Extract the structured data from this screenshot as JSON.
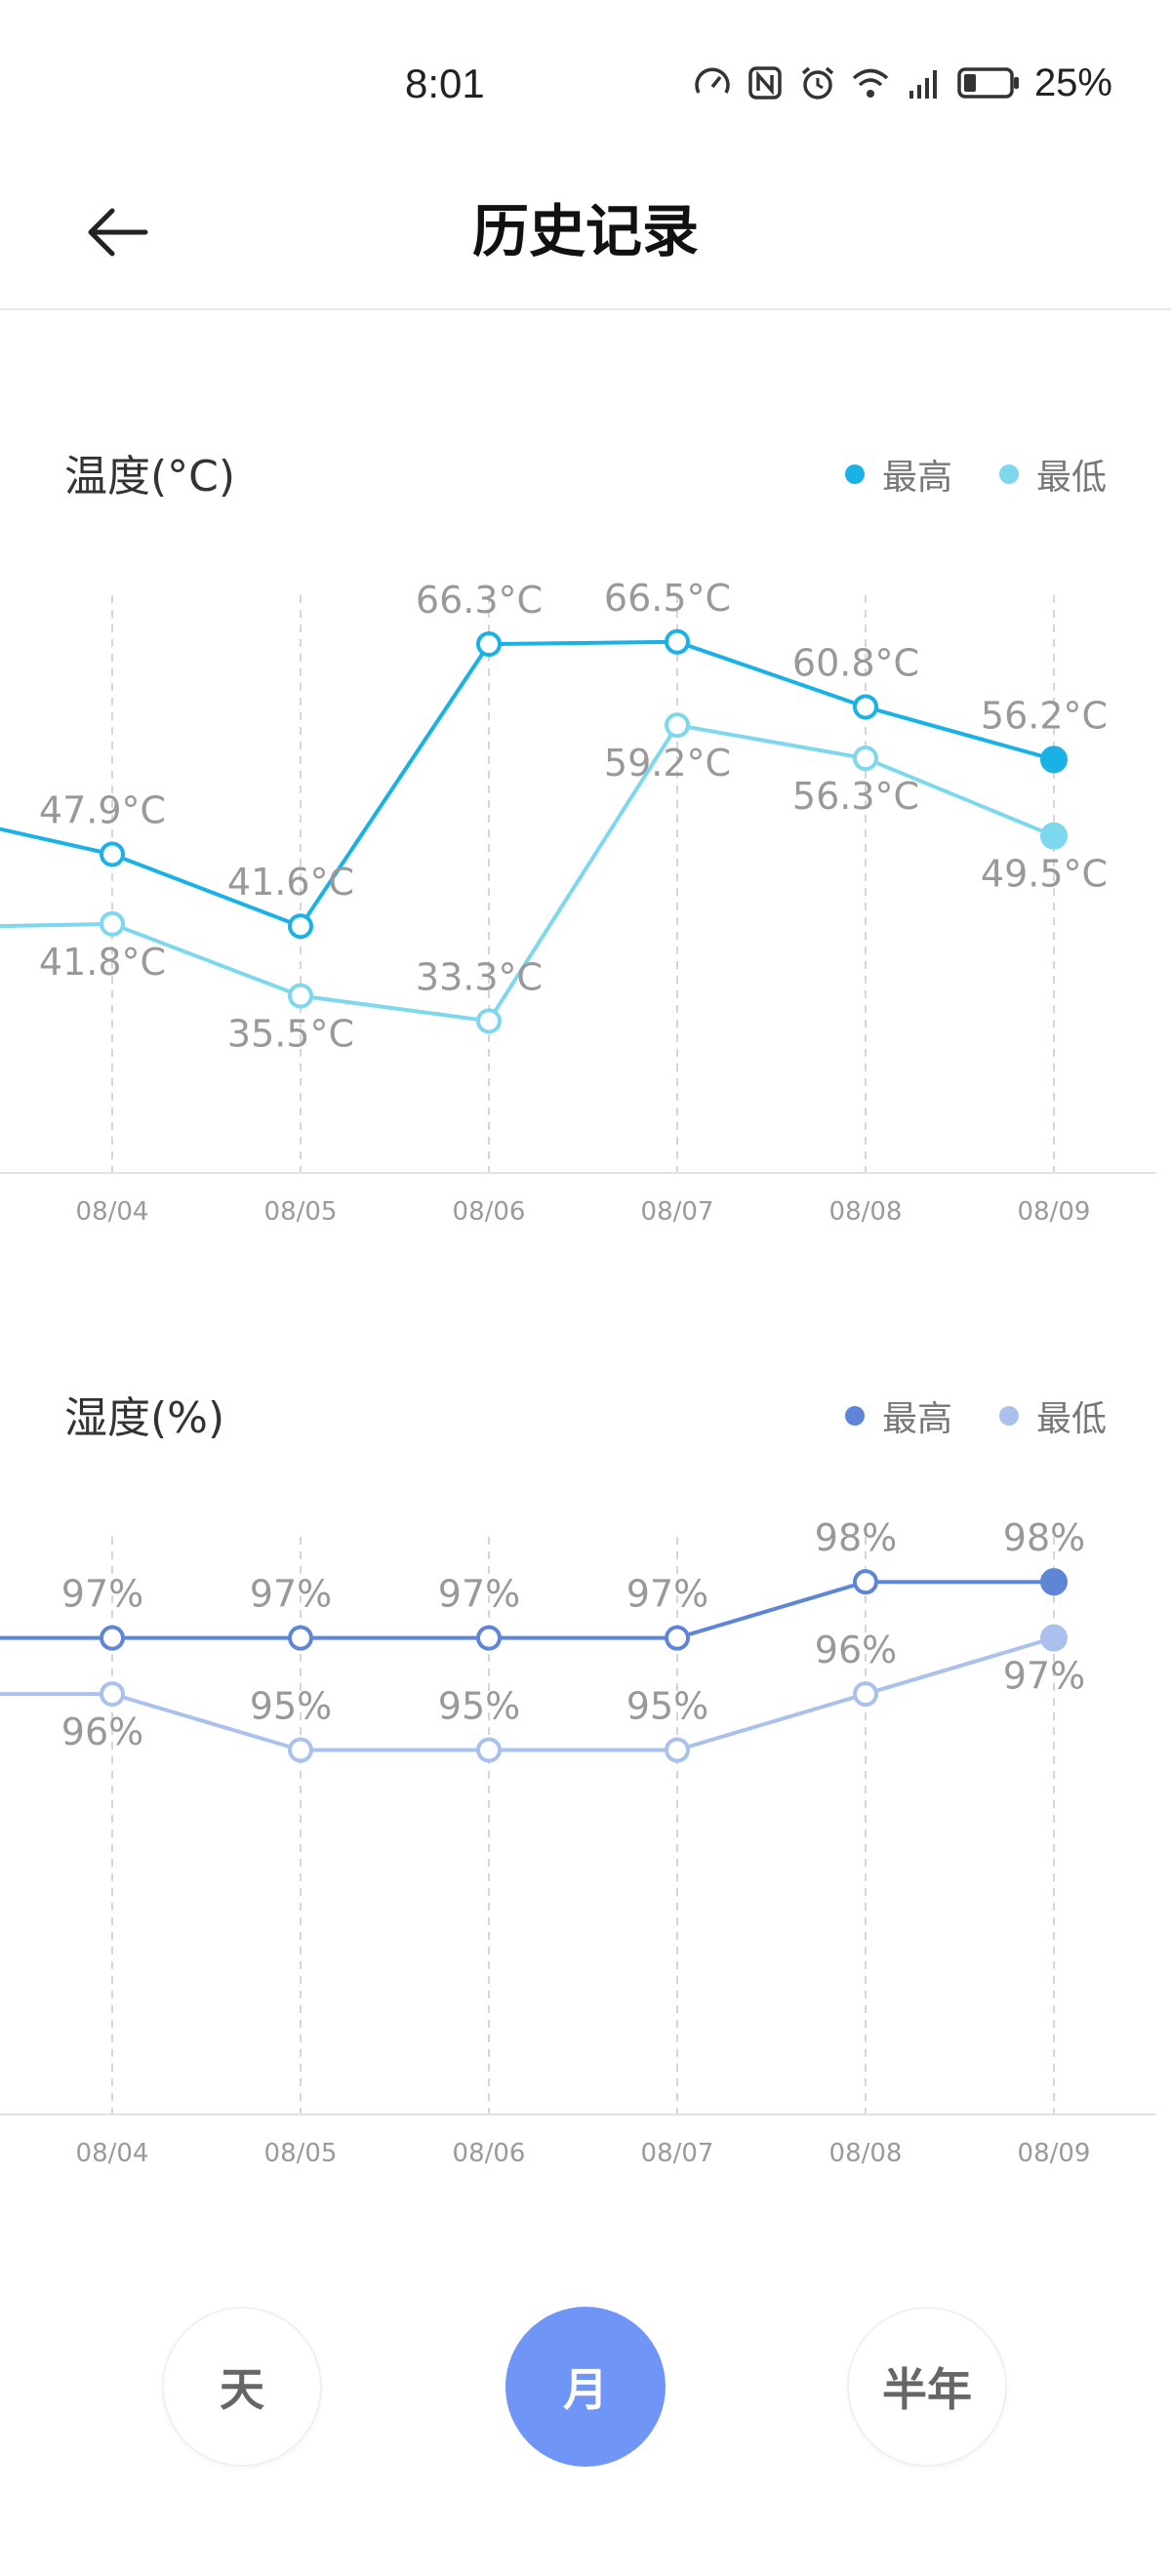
{
  "status_bar": {
    "time": "8:01",
    "battery_percent": "25%",
    "icons": [
      "speedometer-icon",
      "nfc-icon",
      "alarm-icon",
      "wifi-icon",
      "5g-signal-icon",
      "battery-icon"
    ]
  },
  "header": {
    "title": "历史记录",
    "back_icon": "arrow-left-icon"
  },
  "temperature": {
    "title": "温度(°C)",
    "legend": {
      "max_label": "最高",
      "min_label": "最低"
    }
  },
  "humidity": {
    "title": "湿度(%)",
    "legend": {
      "max_label": "最高",
      "min_label": "最低"
    }
  },
  "colors": {
    "temp_max": "#1ab1e6",
    "temp_min": "#7dd8ee",
    "hum_max": "#5f86d6",
    "hum_min": "#a9c1ec",
    "grid": "#d6d6d6",
    "label": "#999999",
    "tab_active": "#6f95f7"
  },
  "chart_data": [
    {
      "type": "line",
      "title": "温度(°C)",
      "categories": [
        "08/04",
        "08/05",
        "08/06",
        "08/07",
        "08/08",
        "08/09"
      ],
      "series": [
        {
          "name": "最高",
          "values": [
            47.9,
            41.6,
            66.3,
            66.5,
            60.8,
            56.2
          ],
          "labels": [
            "47.9°C",
            "41.6°C",
            "66.3°C",
            "66.5°C",
            "60.8°C",
            "56.2°C"
          ],
          "leading_value": 50.2
        },
        {
          "name": "最低",
          "values": [
            41.8,
            35.5,
            33.3,
            59.2,
            56.3,
            49.5
          ],
          "labels": [
            "41.8°C",
            "35.5°C",
            "33.3°C",
            "59.2°C",
            "56.3°C",
            "49.5°C"
          ],
          "leading_value": 41.6
        }
      ],
      "ylim": [
        20,
        74
      ],
      "grid": "vertical-dashed",
      "legend": "top-right"
    },
    {
      "type": "line",
      "title": "湿度(%)",
      "categories": [
        "08/04",
        "08/05",
        "08/06",
        "08/07",
        "08/08",
        "08/09"
      ],
      "series": [
        {
          "name": "最高",
          "values": [
            97,
            97,
            97,
            97,
            98,
            98
          ],
          "labels": [
            "97%",
            "97%",
            "97%",
            "97%",
            "98%",
            "98%"
          ],
          "leading_value": 97
        },
        {
          "name": "最低",
          "values": [
            96,
            95,
            95,
            95,
            96,
            97
          ],
          "labels": [
            "96%",
            "95%",
            "95%",
            "95%",
            "96%",
            "97%"
          ],
          "leading_value": 96
        }
      ],
      "ylim": [
        88.5,
        99.5
      ],
      "grid": "vertical-dashed",
      "legend": "top-right"
    }
  ],
  "tabs": [
    {
      "label": "天",
      "active": false
    },
    {
      "label": "月",
      "active": true
    },
    {
      "label": "半年",
      "active": false
    }
  ]
}
